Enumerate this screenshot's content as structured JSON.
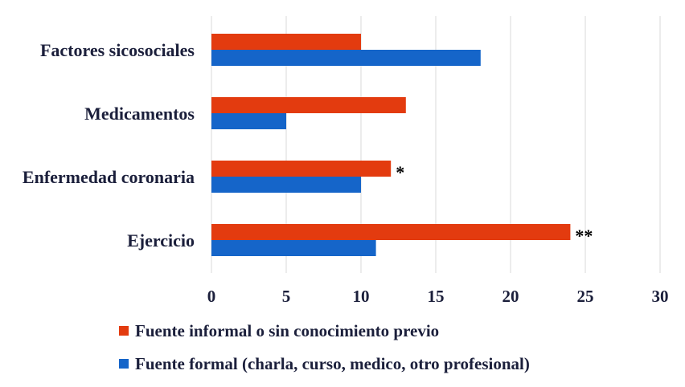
{
  "chart_data": {
    "type": "bar",
    "orientation": "horizontal",
    "title": "",
    "xlabel": "",
    "ylabel": "",
    "categories": [
      "Factores sicosociales",
      "Medicamentos",
      "Enfermedad coronaria",
      "Ejercicio"
    ],
    "xlim": [
      0,
      30
    ],
    "x_ticks": [
      0,
      5,
      10,
      15,
      20,
      25,
      30
    ],
    "grid": true,
    "legend_position": "bottom",
    "series": [
      {
        "name": "Fuente informal o sin conocimiento previo",
        "color": "#e33b0f",
        "values": [
          10,
          13,
          12,
          24
        ]
      },
      {
        "name": "Fuente formal (charla, curso, medico, otro profesional)",
        "color": "#1565c9",
        "values": [
          18,
          5,
          10,
          11
        ]
      }
    ],
    "annotations": [
      {
        "category": "Enfermedad coronaria",
        "series": 0,
        "text": "*"
      },
      {
        "category": "Ejercicio",
        "series": 0,
        "text": "**"
      }
    ]
  }
}
